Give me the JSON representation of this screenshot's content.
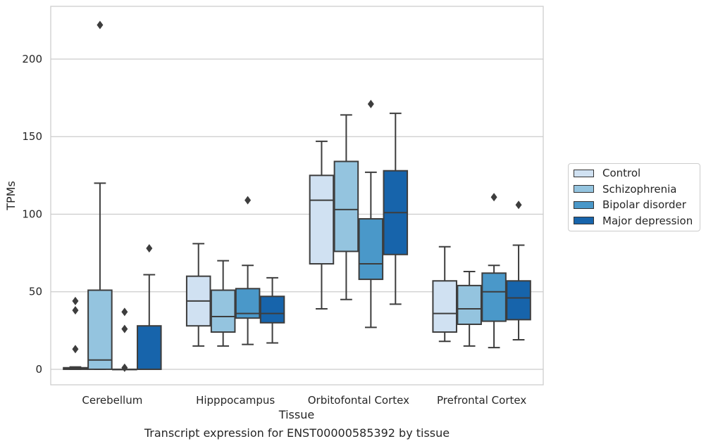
{
  "chart_data": {
    "type": "box",
    "xlabel": "Tissue",
    "ylabel": "TPMs",
    "caption": "Transcript expression for ENST00000585392 by tissue",
    "ylim": [
      -10,
      234
    ],
    "yticks": [
      0,
      50,
      100,
      150,
      200
    ],
    "grid": "horizontal",
    "legend_position": "right",
    "categories": [
      "Cerebellum",
      "Hipppocampus",
      "Orbitofontal Cortex",
      "Prefrontal Cortex"
    ],
    "series": [
      {
        "name": "Control",
        "color": "#d0e1f2",
        "boxes": [
          {
            "whislo": 0,
            "q1": 0,
            "med": 0.5,
            "q3": 1,
            "whishi": 1.5,
            "fliers": [
              44,
              38,
              13
            ]
          },
          {
            "whislo": 15,
            "q1": 28,
            "med": 44,
            "q3": 60,
            "whishi": 81,
            "fliers": []
          },
          {
            "whislo": 39,
            "q1": 68,
            "med": 109,
            "q3": 125,
            "whishi": 147,
            "fliers": []
          },
          {
            "whislo": 18,
            "q1": 24,
            "med": 36,
            "q3": 57,
            "whishi": 79,
            "fliers": []
          }
        ]
      },
      {
        "name": "Schizophrenia",
        "color": "#94c4df",
        "boxes": [
          {
            "whislo": 0,
            "q1": 0,
            "med": 6,
            "q3": 51,
            "whishi": 120,
            "fliers": [
              222
            ]
          },
          {
            "whislo": 15,
            "q1": 24,
            "med": 34,
            "q3": 51,
            "whishi": 70,
            "fliers": []
          },
          {
            "whislo": 45,
            "q1": 76,
            "med": 103,
            "q3": 134,
            "whishi": 164,
            "fliers": []
          },
          {
            "whislo": 15,
            "q1": 29,
            "med": 39,
            "q3": 54,
            "whishi": 63,
            "fliers": []
          }
        ]
      },
      {
        "name": "Bipolar disorder",
        "color": "#4a98c9",
        "boxes": [
          {
            "whislo": 0,
            "q1": 0,
            "med": 0,
            "q3": 0,
            "whishi": 0,
            "fliers": [
              37,
              26,
              1
            ]
          },
          {
            "whislo": 16,
            "q1": 33,
            "med": 36,
            "q3": 52,
            "whishi": 67,
            "fliers": [
              109
            ]
          },
          {
            "whislo": 27,
            "q1": 58,
            "med": 68,
            "q3": 97,
            "whishi": 127,
            "fliers": [
              171
            ]
          },
          {
            "whislo": 14,
            "q1": 31,
            "med": 50,
            "q3": 62,
            "whishi": 67,
            "fliers": [
              111
            ]
          }
        ]
      },
      {
        "name": "Major depression",
        "color": "#1764ab",
        "boxes": [
          {
            "whislo": 0,
            "q1": 0,
            "med": 0,
            "q3": 28,
            "whishi": 61,
            "fliers": [
              78
            ]
          },
          {
            "whislo": 17,
            "q1": 30,
            "med": 36,
            "q3": 47,
            "whishi": 59,
            "fliers": []
          },
          {
            "whislo": 42,
            "q1": 74,
            "med": 101,
            "q3": 128,
            "whishi": 165,
            "fliers": []
          },
          {
            "whislo": 19,
            "q1": 32,
            "med": 46,
            "q3": 57,
            "whishi": 80,
            "fliers": [
              106
            ]
          }
        ]
      }
    ]
  }
}
